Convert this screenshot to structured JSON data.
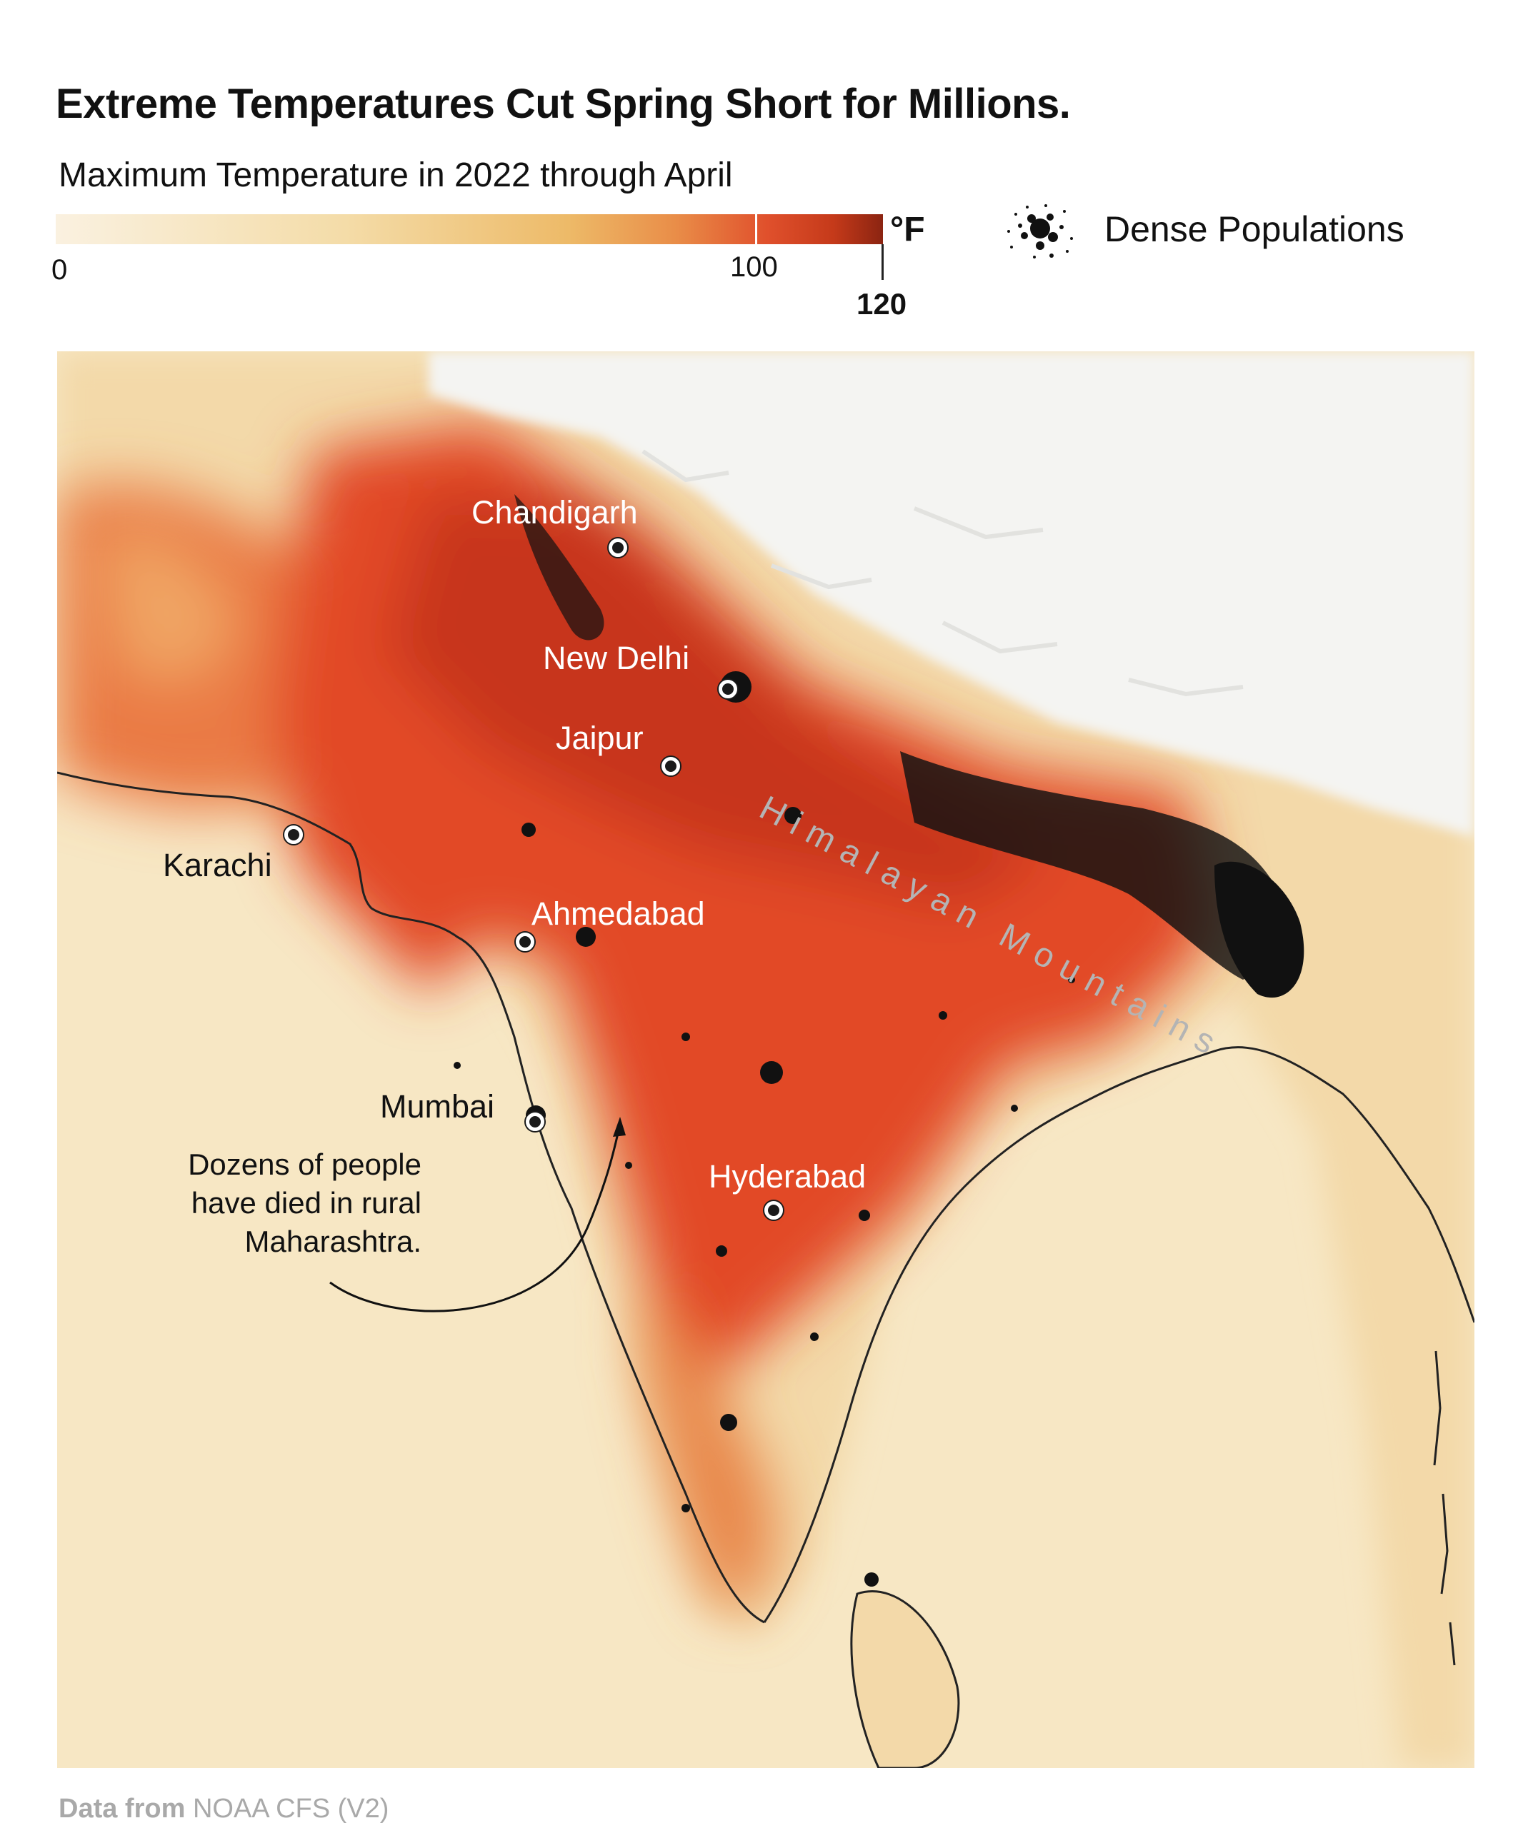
{
  "title": "Extreme Temperatures Cut Spring Short for Millions.",
  "subtitle": "Maximum Temperature in 2022 through April",
  "scale": {
    "unit": "°F",
    "min_label": "0",
    "mid_label": "100",
    "max_label": "120",
    "colors": [
      "#faf1e0",
      "#f4dca8",
      "#edba68",
      "#e98d48",
      "#e0502c",
      "#c53a1a",
      "#8b2411"
    ]
  },
  "legend": {
    "label": "Dense Populations",
    "icon": "population-dots-icon"
  },
  "map": {
    "region": "South Asia",
    "mountain_label": "Himalayan Mountains",
    "cities": [
      {
        "name": "Chandigarh",
        "style": "light"
      },
      {
        "name": "New Delhi",
        "style": "light"
      },
      {
        "name": "Jaipur",
        "style": "light"
      },
      {
        "name": "Karachi",
        "style": "dark"
      },
      {
        "name": "Ahmedabad",
        "style": "light"
      },
      {
        "name": "Mumbai",
        "style": "dark"
      },
      {
        "name": "Hyderabad",
        "style": "light"
      }
    ],
    "colors": {
      "sea": "#f7e7c4",
      "land_cool": "#f3d9a9",
      "hot": "#e24a26",
      "hottest": "#c7361a",
      "mountains": "#f4f4f2",
      "population": "#111111"
    }
  },
  "annotation": "Dozens of people have died in rural Maharashtra.",
  "source": {
    "prefix": "Data from",
    "name": "NOAA CFS (V2)"
  }
}
